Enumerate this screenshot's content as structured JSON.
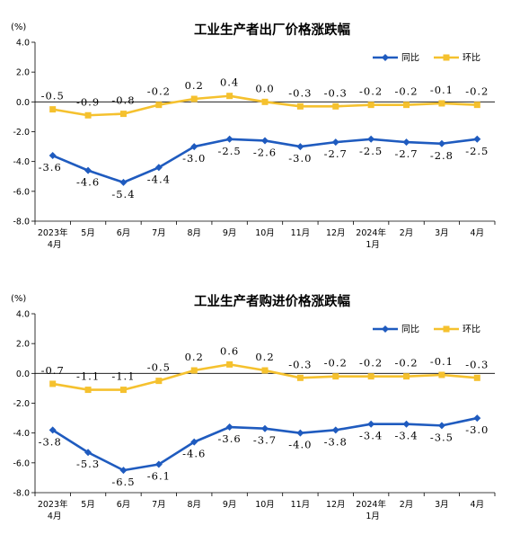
{
  "chart_data": [
    {
      "type": "line",
      "title": "工业生产者出厂价格涨跌幅",
      "unit": "(%)",
      "ylim": [
        -8.0,
        4.0
      ],
      "yticks": [
        "4.0",
        "2.0",
        "0.0",
        "-2.0",
        "-4.0",
        "-6.0",
        "-8.0"
      ],
      "categories": [
        [
          "2023年",
          "4月"
        ],
        [
          "5月"
        ],
        [
          "6月"
        ],
        [
          "7月"
        ],
        [
          "8月"
        ],
        [
          "9月"
        ],
        [
          "10月"
        ],
        [
          "11月"
        ],
        [
          "12月"
        ],
        [
          "2024年",
          "1月"
        ],
        [
          "2月"
        ],
        [
          "3月"
        ],
        [
          "4月"
        ]
      ],
      "legend_position": "top-right",
      "series": [
        {
          "name": "同比",
          "color": "#1f5bbf",
          "marker": "diamond",
          "values": [
            -3.6,
            -4.6,
            -5.4,
            -4.4,
            -3.0,
            -2.5,
            -2.6,
            -3.0,
            -2.7,
            -2.5,
            -2.7,
            -2.8,
            -2.5
          ],
          "labels": [
            "-3.6",
            "-4.6",
            "-5.4",
            "-4.4",
            "-3.0",
            "-2.5",
            "-2.6",
            "-3.0",
            "-2.7",
            "-2.5",
            "-2.7",
            "-2.8",
            "-2.5"
          ]
        },
        {
          "name": "环比",
          "color": "#f5c12e",
          "marker": "square",
          "values": [
            -0.5,
            -0.9,
            -0.8,
            -0.2,
            0.2,
            0.4,
            0.0,
            -0.3,
            -0.3,
            -0.2,
            -0.2,
            -0.1,
            -0.2
          ],
          "labels": [
            "-0.5",
            "-0.9",
            "-0.8",
            "-0.2",
            "0.2",
            "0.4",
            "0.0",
            "-0.3",
            "-0.3",
            "-0.2",
            "-0.2",
            "-0.1",
            "-0.2"
          ]
        }
      ]
    },
    {
      "type": "line",
      "title": "工业生产者购进价格涨跌幅",
      "unit": "(%)",
      "ylim": [
        -8.0,
        4.0
      ],
      "yticks": [
        "4.0",
        "2.0",
        "0.0",
        "-2.0",
        "-4.0",
        "-6.0",
        "-8.0"
      ],
      "categories": [
        [
          "2023年",
          "4月"
        ],
        [
          "5月"
        ],
        [
          "6月"
        ],
        [
          "7月"
        ],
        [
          "8月"
        ],
        [
          "9月"
        ],
        [
          "10月"
        ],
        [
          "11月"
        ],
        [
          "12月"
        ],
        [
          "2024年",
          "1月"
        ],
        [
          "2月"
        ],
        [
          "3月"
        ],
        [
          "4月"
        ]
      ],
      "legend_position": "top-right",
      "series": [
        {
          "name": "同比",
          "color": "#1f5bbf",
          "marker": "diamond",
          "values": [
            -3.8,
            -5.3,
            -6.5,
            -6.1,
            -4.6,
            -3.6,
            -3.7,
            -4.0,
            -3.8,
            -3.4,
            -3.4,
            -3.5,
            -3.0
          ],
          "labels": [
            "-3.8",
            "-5.3",
            "-6.5",
            "-6.1",
            "-4.6",
            "-3.6",
            "-3.7",
            "-4.0",
            "-3.8",
            "-3.4",
            "-3.4",
            "-3.5",
            "-3.0"
          ]
        },
        {
          "name": "环比",
          "color": "#f5c12e",
          "marker": "square",
          "values": [
            -0.7,
            -1.1,
            -1.1,
            -0.5,
            0.2,
            0.6,
            0.2,
            -0.3,
            -0.2,
            -0.2,
            -0.2,
            -0.1,
            -0.3
          ],
          "labels": [
            "-0.7",
            "-1.1",
            "-1.1",
            "-0.5",
            "0.2",
            "0.6",
            "0.2",
            "-0.3",
            "-0.2",
            "-0.2",
            "-0.2",
            "-0.1",
            "-0.3"
          ]
        }
      ]
    }
  ]
}
